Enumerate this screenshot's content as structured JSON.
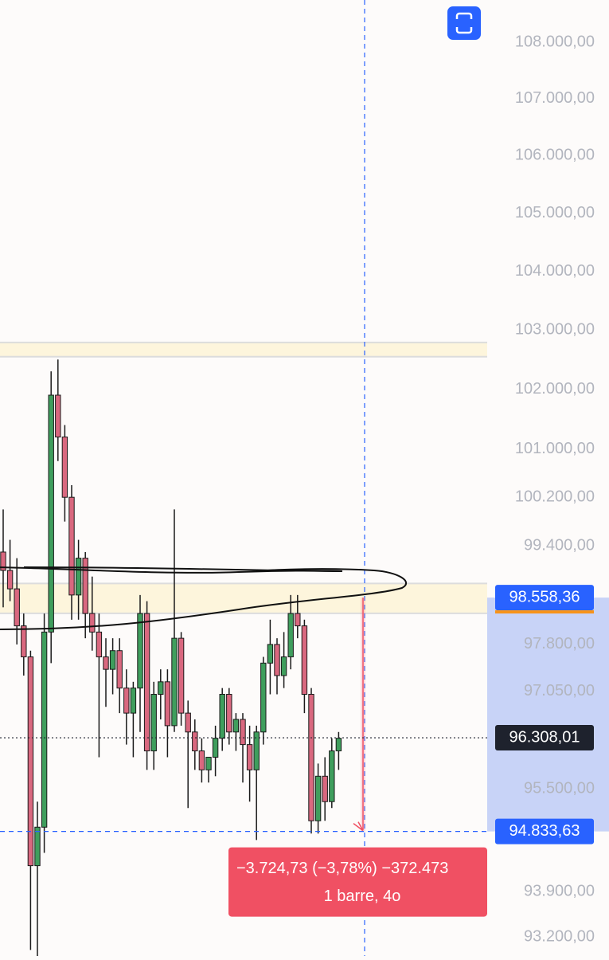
{
  "chart_data": {
    "type": "candlestick",
    "log_scale": true,
    "ylim": [
      92907,
      108754
    ],
    "yticks": [
      {
        "value": 108000,
        "label": "108.000,00"
      },
      {
        "value": 107000,
        "label": "107.000,00"
      },
      {
        "value": 106000,
        "label": "106.000,00"
      },
      {
        "value": 105000,
        "label": "105.000,00"
      },
      {
        "value": 104000,
        "label": "104.000,00"
      },
      {
        "value": 103000,
        "label": "103.000,00"
      },
      {
        "value": 102000,
        "label": "102.000,00"
      },
      {
        "value": 101000,
        "label": "101.000,00"
      },
      {
        "value": 100200,
        "label": "100.200,00"
      },
      {
        "value": 99400,
        "label": "99.400,00"
      },
      {
        "value": 97800,
        "label": "97.800,00"
      },
      {
        "value": 97050,
        "label": "97.050,00"
      },
      {
        "value": 95500,
        "label": "95.500,00"
      },
      {
        "value": 93900,
        "label": "93.900,00"
      },
      {
        "value": 93200,
        "label": "93.200,00"
      }
    ],
    "up_color": "#3f9e5d",
    "down_color": "#d9687f",
    "open": [
      99300,
      99000,
      98700,
      98100,
      97600,
      94300,
      94900,
      98000,
      101900,
      101200,
      100200,
      98600,
      99200,
      98300,
      98000,
      97600,
      97400,
      97700,
      97100,
      96700,
      97100,
      98300,
      96100,
      97000,
      97200,
      96500,
      97900,
      96700,
      96400,
      96100,
      95800,
      96000,
      96300,
      97000,
      96400,
      96600,
      96200,
      95800,
      96400,
      97500,
      97800,
      97300,
      97600,
      98300,
      98100,
      97000,
      95000,
      95700,
      95300,
      96100
    ],
    "high": [
      100000,
      99500,
      99200,
      98300,
      97700,
      95300,
      98300,
      102300,
      102500,
      101400,
      100400,
      99500,
      99300,
      98900,
      98300,
      97900,
      97900,
      97900,
      97400,
      97200,
      98600,
      98500,
      97200,
      97400,
      97400,
      100000,
      98000,
      96900,
      96600,
      96300,
      96000,
      96500,
      97100,
      97100,
      96700,
      96700,
      96500,
      96500,
      97600,
      98200,
      97900,
      98000,
      98600,
      98600,
      98200,
      97100,
      95900,
      96000,
      96300,
      96400
    ],
    "low": [
      98400,
      98500,
      97800,
      97300,
      93000,
      92900,
      94500,
      97500,
      100800,
      99800,
      98200,
      98200,
      97900,
      97700,
      96000,
      96800,
      97000,
      96700,
      96200,
      96000,
      96400,
      95800,
      95800,
      96600,
      96000,
      96400,
      96500,
      95200,
      95800,
      95600,
      95600,
      95700,
      96100,
      96200,
      96100,
      95600,
      95300,
      94700,
      96200,
      97000,
      97000,
      97100,
      97400,
      97900,
      96700,
      94800,
      94800,
      95000,
      95200,
      95800
    ],
    "close": [
      99000,
      98700,
      98100,
      97600,
      94300,
      94900,
      98000,
      101900,
      101200,
      100200,
      98600,
      99200,
      98300,
      98000,
      97600,
      97400,
      97700,
      97100,
      96700,
      97100,
      98300,
      96100,
      97000,
      97200,
      96500,
      97900,
      96700,
      96400,
      96100,
      95800,
      96000,
      96300,
      97000,
      96400,
      96600,
      96200,
      95800,
      96400,
      97500,
      97800,
      97300,
      97600,
      98300,
      98100,
      97000,
      95000,
      95700,
      95300,
      96100,
      96300
    ],
    "zones": [
      {
        "from": 102548,
        "to": 102788,
        "color": "#fdf5dc"
      },
      {
        "from": 98303,
        "to": 98787,
        "color": "#fdf5dc"
      }
    ],
    "price_markers": [
      {
        "value": 98558.36,
        "label": "98.558,36",
        "color": "#2962ff",
        "line": "none"
      },
      {
        "value": 96308.01,
        "label": "96.308,01",
        "color": "#1e222d",
        "line": "dotted"
      },
      {
        "value": 94833.63,
        "label": "94.833,63",
        "color": "#2962ff",
        "line": "dashed"
      }
    ],
    "measure": {
      "from": 98558.36,
      "to": 94833.63,
      "color": "#f05063",
      "change_label": "−3.724,73 (−3,78%) −372.473",
      "bars_label": "1 barre, 4o"
    }
  }
}
